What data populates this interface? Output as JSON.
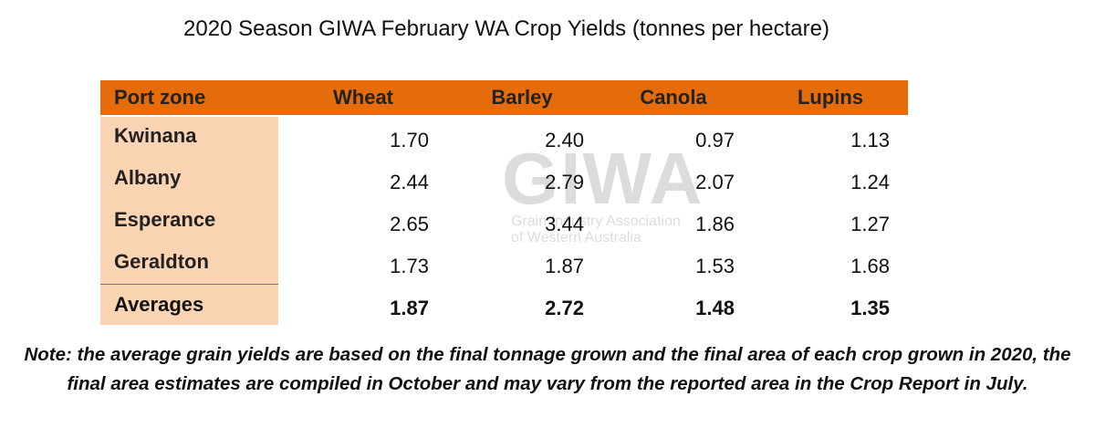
{
  "title": "2020 Season GIWA February WA Crop Yields (tonnes per hectare)",
  "table": {
    "header": [
      "Port zone",
      "Wheat",
      "Barley",
      "Canola",
      "Lupins"
    ],
    "rows": [
      [
        "Kwinana",
        "1.70",
        "2.40",
        "0.97",
        "1.13"
      ],
      [
        "Albany",
        "2.44",
        "2.79",
        "2.07",
        "1.24"
      ],
      [
        "Esperance",
        "2.65",
        "3.44",
        "1.86",
        "1.27"
      ],
      [
        "Geraldton",
        "1.73",
        "1.87",
        "1.53",
        "1.68"
      ]
    ],
    "averages": [
      "Averages",
      "1.87",
      "2.72",
      "1.48",
      "1.35"
    ]
  },
  "watermark": {
    "logo": "GIWA",
    "name": "Grain Industry Association",
    "region": "of Western Australia"
  },
  "note": "Note: the average grain yields are based on the final tonnage grown and the final area of each crop grown in 2020, the final area estimates are compiled in October and may vary from the reported area in the Crop Report in July."
}
